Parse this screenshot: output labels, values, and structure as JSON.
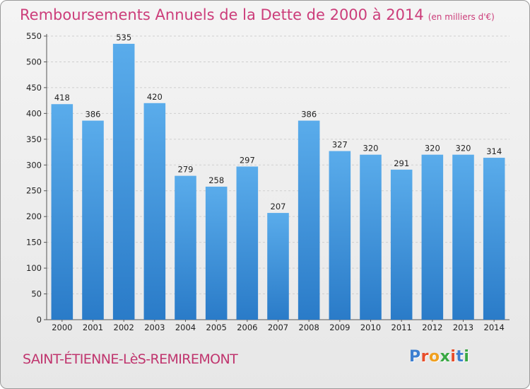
{
  "title": "Remboursements Annuels de la Dette de 2000 à 2014",
  "unit_note": "(en milliers d'€)",
  "town": "SAINT-ÉTIENNE-LèS-REMIREMONT",
  "logo": {
    "letters": [
      "P",
      "r",
      "o",
      "x",
      "i",
      "t",
      "i"
    ],
    "colors": [
      "#3d7fd0",
      "#e84d2a",
      "#f0a020",
      "#39a843",
      "#e84d2a",
      "#3d7fd0",
      "#39a843"
    ]
  },
  "colors": {
    "bar": "#4d9fe3",
    "bar_dark": "#2a78c6",
    "title": "#cc3d7a"
  },
  "chart_data": {
    "type": "bar",
    "title": "Remboursements Annuels de la Dette de 2000 à 2014",
    "categories": [
      "2000",
      "2001",
      "2002",
      "2003",
      "2004",
      "2005",
      "2006",
      "2007",
      "2008",
      "2009",
      "2010",
      "2011",
      "2012",
      "2013",
      "2014"
    ],
    "values": [
      418,
      386,
      535,
      420,
      279,
      258,
      297,
      207,
      386,
      327,
      320,
      291,
      320,
      320,
      314
    ],
    "ylim": [
      0,
      550
    ],
    "yticks": [
      0,
      50,
      100,
      150,
      200,
      250,
      300,
      350,
      400,
      450,
      500,
      550
    ],
    "grid": true,
    "legend": "none"
  }
}
